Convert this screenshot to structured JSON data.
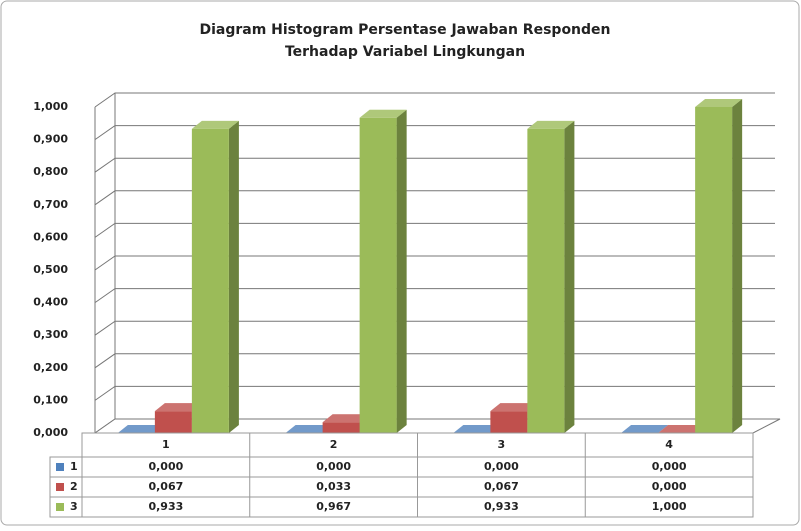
{
  "chart_data": {
    "type": "bar3d",
    "title": [
      "Diagram Histogram Persentase Jawaban Responden",
      "Terhadap Variabel Lingkungan"
    ],
    "categories": [
      "1",
      "2",
      "3",
      "4"
    ],
    "series": [
      {
        "name": "1",
        "color": "#4f81bd",
        "values": [
          0,
          0,
          0,
          0
        ],
        "value_labels": [
          "0,000",
          "0,000",
          "0,000",
          "0,000"
        ]
      },
      {
        "name": "2",
        "color": "#c0504d",
        "values": [
          0.067,
          0.033,
          0.067,
          0
        ],
        "value_labels": [
          "0,067",
          "0,033",
          "0,067",
          "0,000"
        ]
      },
      {
        "name": "3",
        "color": "#9bbb59",
        "values": [
          0.933,
          0.967,
          0.933,
          1.0
        ],
        "value_labels": [
          "0,933",
          "0,967",
          "0,933",
          "1,000"
        ]
      }
    ],
    "ylim": [
      0,
      1
    ],
    "yticks": [
      {
        "value": 0,
        "label": "0,000"
      },
      {
        "value": 0.1,
        "label": "0,100"
      },
      {
        "value": 0.2,
        "label": "0,200"
      },
      {
        "value": 0.3,
        "label": "0,300"
      },
      {
        "value": 0.4,
        "label": "0,400"
      },
      {
        "value": 0.5,
        "label": "0,500"
      },
      {
        "value": 0.6,
        "label": "0,600"
      },
      {
        "value": 0.7,
        "label": "0,700"
      },
      {
        "value": 0.8,
        "label": "0,800"
      },
      {
        "value": 0.9,
        "label": "0,900"
      },
      {
        "value": 1.0,
        "label": "1,000"
      }
    ],
    "grid": true,
    "data_table": true
  }
}
